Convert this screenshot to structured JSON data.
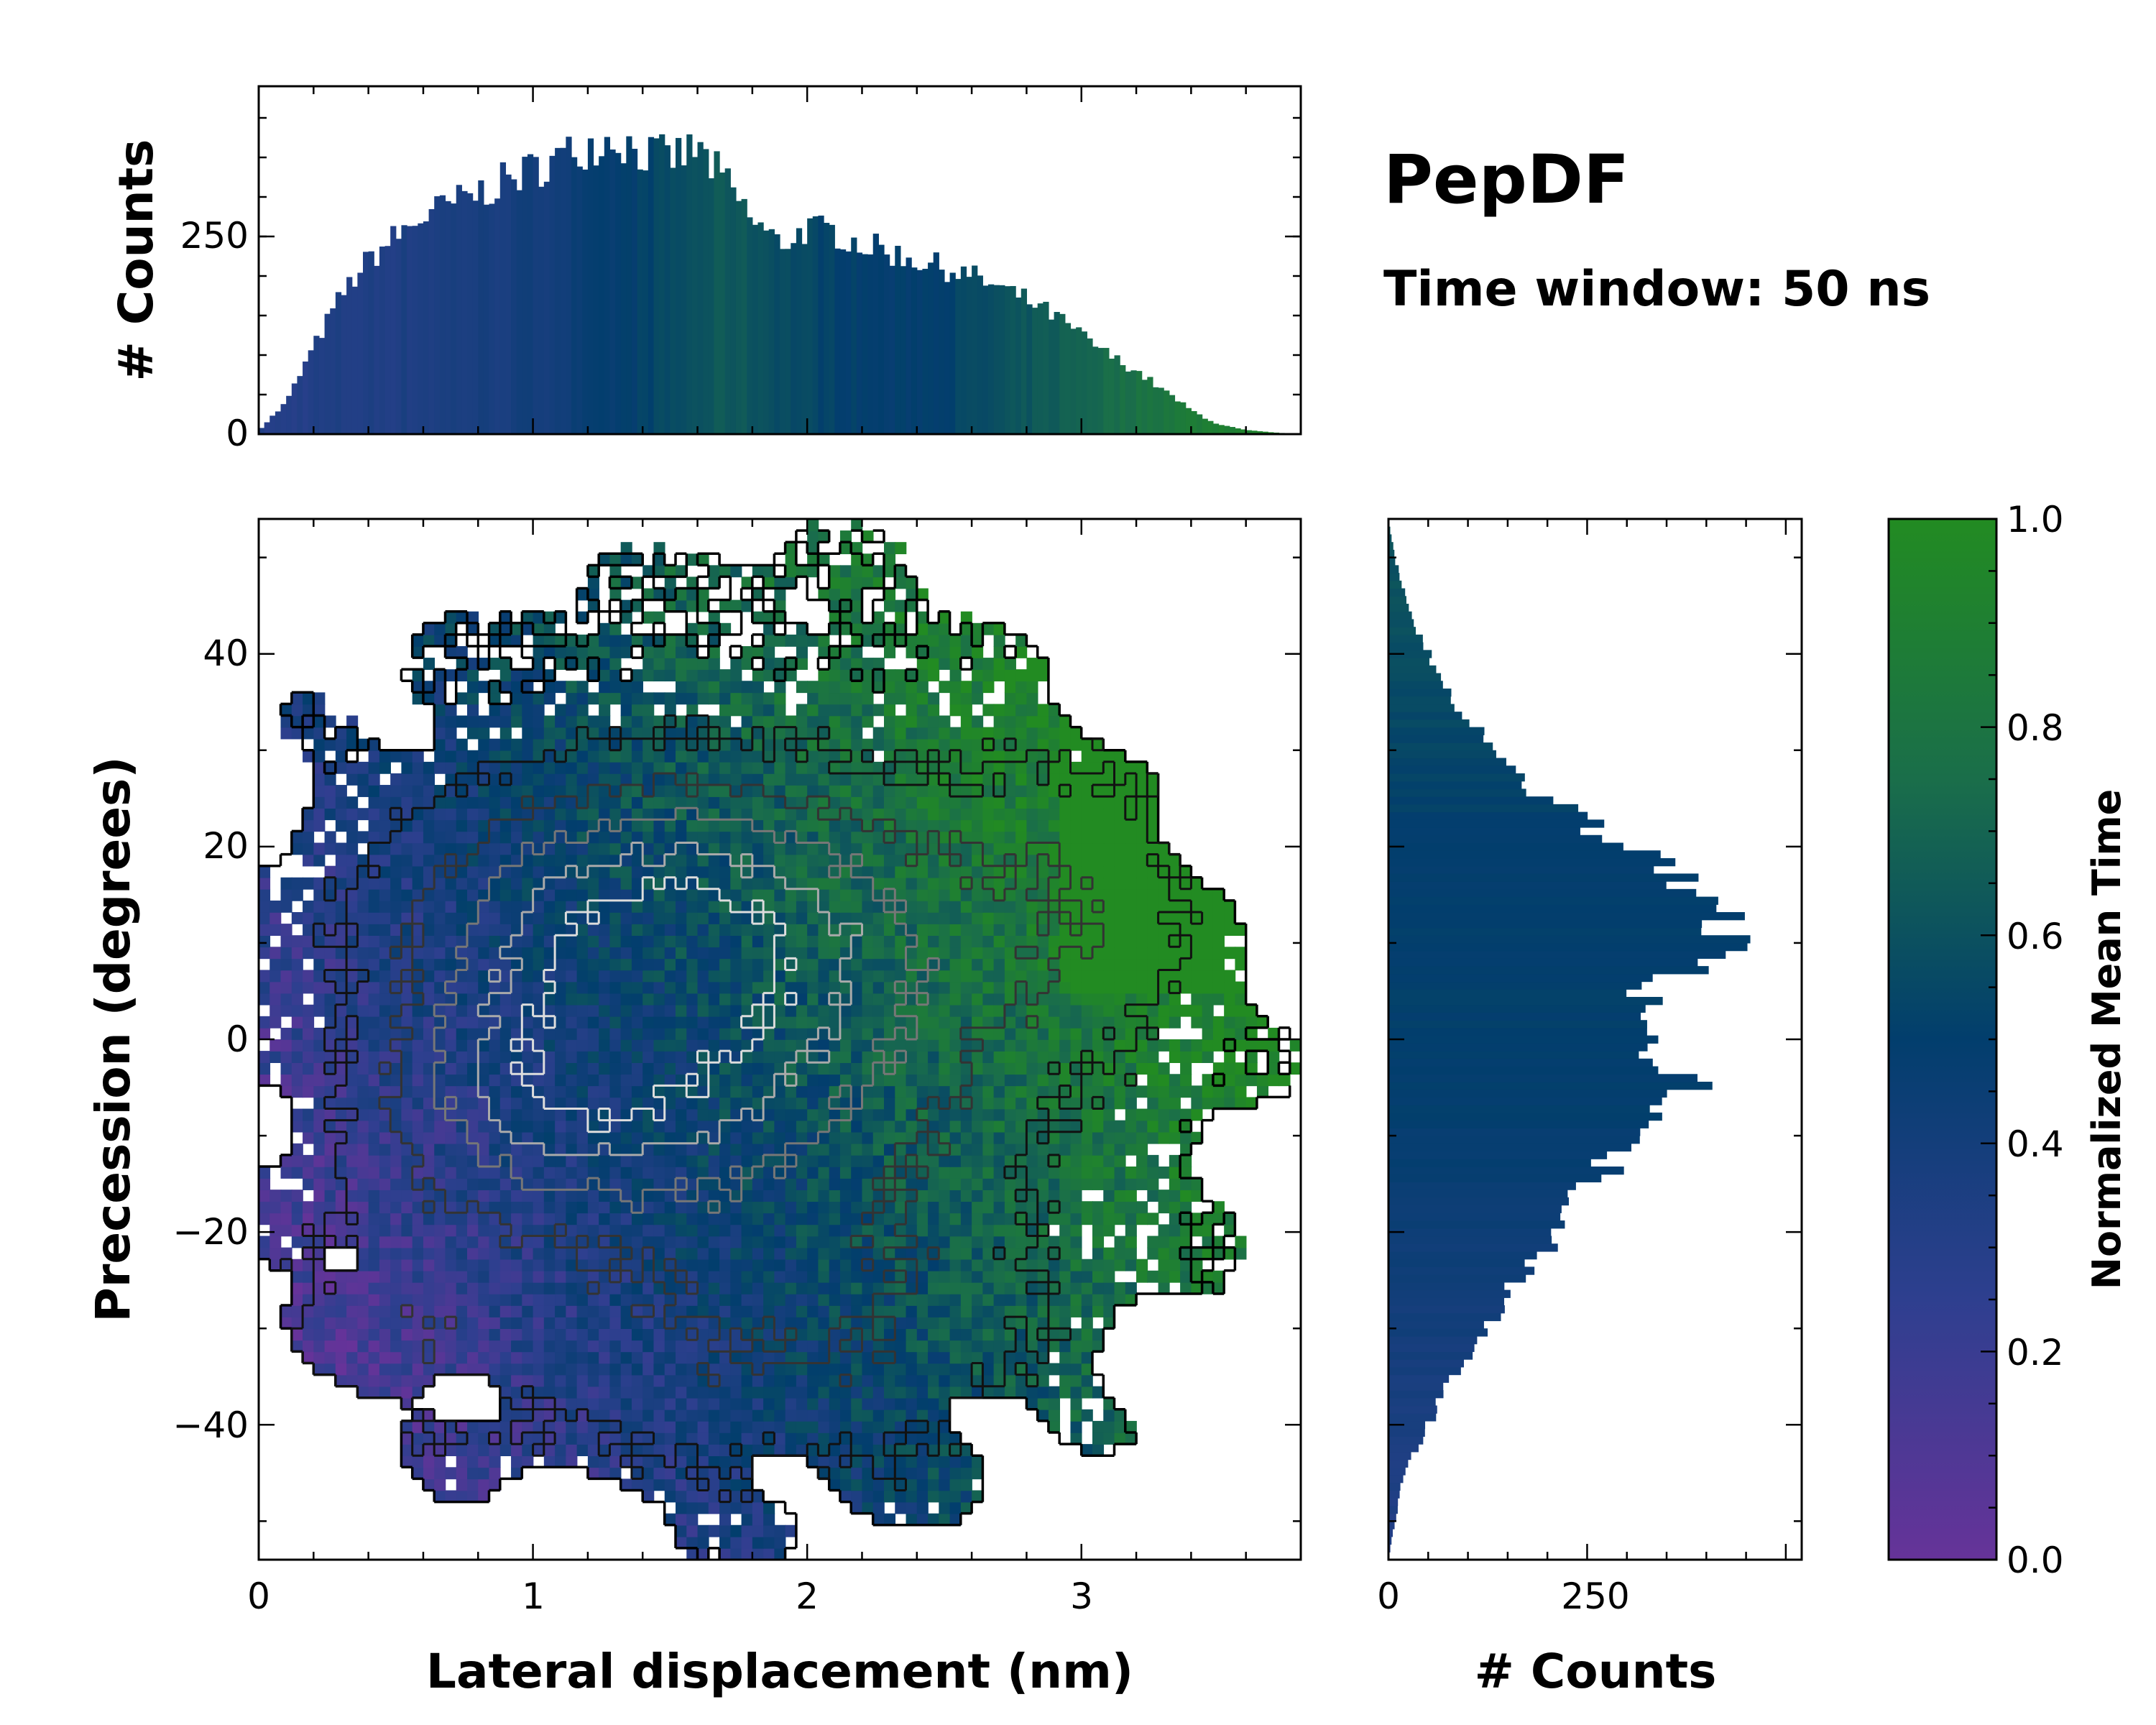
{
  "chart_data": [
    {
      "panel": "top-histogram",
      "type": "bar",
      "ylabel": "# Counts",
      "xlim": [
        0,
        3.8
      ],
      "ylim": [
        0,
        440
      ],
      "yticks": [
        0,
        250
      ],
      "x_step": 0.02,
      "color_by": "normalized mean time",
      "anchors_x": [
        0.0,
        0.1,
        0.2,
        0.3,
        0.4,
        0.5,
        0.6,
        0.7,
        0.8,
        0.9,
        1.0,
        1.1,
        1.2,
        1.3,
        1.4,
        1.5,
        1.6,
        1.7,
        1.8,
        1.9,
        2.0,
        2.1,
        2.2,
        2.3,
        2.4,
        2.5,
        2.6,
        2.7,
        2.8,
        2.9,
        3.0,
        3.1,
        3.2,
        3.3,
        3.4,
        3.5,
        3.6,
        3.7,
        3.8
      ],
      "anchors_y": [
        5,
        40,
        110,
        175,
        220,
        250,
        275,
        290,
        305,
        320,
        335,
        350,
        365,
        375,
        355,
        350,
        360,
        320,
        270,
        240,
        260,
        255,
        240,
        230,
        220,
        210,
        200,
        185,
        170,
        150,
        125,
        100,
        80,
        55,
        30,
        12,
        5,
        2,
        0
      ],
      "anchors_t": [
        0.3,
        0.3,
        0.32,
        0.33,
        0.33,
        0.34,
        0.35,
        0.36,
        0.37,
        0.38,
        0.4,
        0.42,
        0.45,
        0.48,
        0.52,
        0.56,
        0.6,
        0.64,
        0.62,
        0.58,
        0.55,
        0.52,
        0.5,
        0.48,
        0.5,
        0.52,
        0.55,
        0.58,
        0.62,
        0.66,
        0.7,
        0.74,
        0.78,
        0.82,
        0.86,
        0.9,
        0.92,
        0.94,
        0.95
      ]
    },
    {
      "panel": "main-heatmap",
      "type": "heatmap",
      "xlabel": "Lateral displacement (nm)",
      "ylabel": "Precession (degrees)",
      "xlim": [
        0,
        3.8
      ],
      "ylim": [
        -54,
        54
      ],
      "xticks": [
        0,
        1,
        2,
        3
      ],
      "yticks": [
        40,
        20,
        0,
        -20,
        -40
      ],
      "cell_size": [
        0.04,
        1.2
      ],
      "value": "normalized mean time",
      "contours": "density",
      "centers": [
        {
          "x": 1.3,
          "y": 12,
          "sx": 0.55,
          "sy": 10,
          "w": 1.0
        },
        {
          "x": 1.1,
          "y": -6,
          "sx": 0.45,
          "sy": 8,
          "w": 0.9
        },
        {
          "x": 2.0,
          "y": 5,
          "sx": 0.55,
          "sy": 14,
          "w": 0.7
        },
        {
          "x": 1.9,
          "y": -28,
          "sx": 0.7,
          "sy": 13,
          "w": 0.5
        },
        {
          "x": 3.0,
          "y": 15,
          "sx": 0.35,
          "sy": 12,
          "w": 0.35
        },
        {
          "x": 0.5,
          "y": -30,
          "sx": 0.35,
          "sy": 10,
          "w": 0.35
        }
      ],
      "time_field": {
        "x_gain": 0.22,
        "y_gain": 0.004,
        "offset": 0.18
      }
    },
    {
      "panel": "right-histogram",
      "type": "bar",
      "orientation": "horizontal",
      "xlabel": "# Counts",
      "xlim": [
        0,
        520
      ],
      "ylim": [
        -54,
        54
      ],
      "xticks": [
        0,
        250
      ],
      "y_step": 0.8,
      "anchors_y": [
        -54,
        -50,
        -45,
        -40,
        -35,
        -30,
        -25,
        -20,
        -15,
        -10,
        -7,
        -5,
        -2,
        0,
        2,
        5,
        8,
        10,
        12,
        15,
        18,
        20,
        25,
        30,
        35,
        40,
        45,
        50,
        54
      ],
      "anchors_v": [
        0,
        8,
        20,
        50,
        80,
        120,
        160,
        210,
        260,
        300,
        330,
        380,
        350,
        330,
        300,
        330,
        390,
        420,
        430,
        380,
        360,
        300,
        200,
        130,
        80,
        50,
        25,
        8,
        0
      ],
      "anchors_t": [
        0.3,
        0.32,
        0.34,
        0.36,
        0.38,
        0.4,
        0.42,
        0.44,
        0.46,
        0.48,
        0.5,
        0.5,
        0.5,
        0.5,
        0.5,
        0.5,
        0.5,
        0.5,
        0.5,
        0.5,
        0.5,
        0.5,
        0.52,
        0.54,
        0.56,
        0.58,
        0.6,
        0.6,
        0.6
      ]
    },
    {
      "panel": "colorbar",
      "type": "colorbar",
      "label": "Normalized Mean Time",
      "range": [
        0,
        1
      ],
      "ticks": [
        "0.0",
        "0.2",
        "0.4",
        "0.6",
        "0.8",
        "1.0"
      ],
      "colormap": [
        "#663399",
        "#2e3f8f",
        "#023e6d",
        "#1a6e4a",
        "#228b22"
      ]
    }
  ],
  "titles": {
    "main": "PepDF",
    "sub": "Time window: 50 ns"
  },
  "labels": {
    "top_ylabel": "# Counts",
    "main_xlabel": "Lateral displacement (nm)",
    "main_ylabel": "Precession (degrees)",
    "right_xlabel": "# Counts",
    "colorbar_label": "Normalized Mean Time"
  },
  "tick_text": {
    "top_y": [
      "0",
      "250"
    ],
    "main_x": [
      "0",
      "1",
      "2",
      "3"
    ],
    "main_y": [
      "40",
      "20",
      "0",
      "−20",
      "−40"
    ],
    "right_x": [
      "0",
      "250"
    ],
    "cbar": [
      "0.0",
      "0.2",
      "0.4",
      "0.6",
      "0.8",
      "1.0"
    ]
  }
}
